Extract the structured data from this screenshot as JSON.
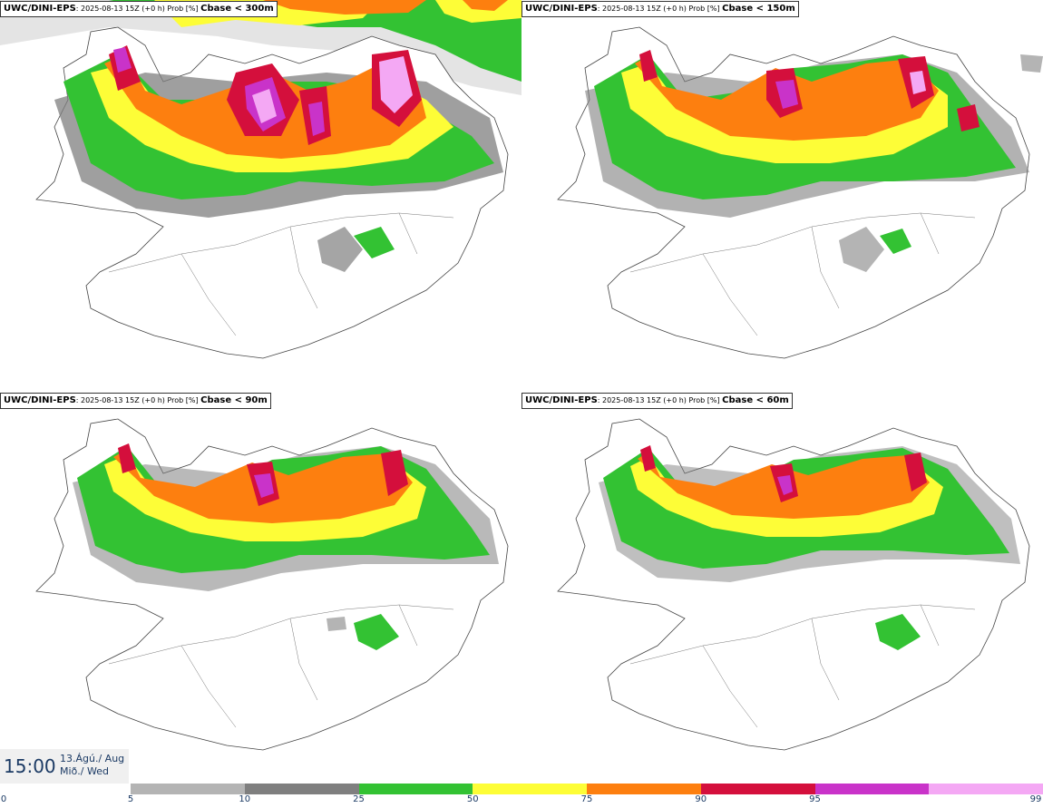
{
  "panels": [
    {
      "source": "UWC/DINI-EPS",
      "meta": ": 2025-08-13 15Z (+0 h) Prob [%] ",
      "label": "Cbase < 300m"
    },
    {
      "source": "UWC/DINI-EPS",
      "meta": ": 2025-08-13 15Z (+0 h) Prob [%] ",
      "label": "Cbase < 150m"
    },
    {
      "source": "UWC/DINI-EPS",
      "meta": ": 2025-08-13 15Z (+0 h) Prob [%] ",
      "label": "Cbase < 90m"
    },
    {
      "source": "UWC/DINI-EPS",
      "meta": ": 2025-08-13 15Z (+0 h) Prob [%] ",
      "label": "Cbase < 60m"
    }
  ],
  "time": {
    "clock": "15:00",
    "date_line1": "13.Ágú./ Aug",
    "date_line2": "Mið./ Wed"
  },
  "legend": {
    "colors": [
      "#b4b4b4",
      "#7f7f7f",
      "#33c233",
      "#fdfd37",
      "#fd7f0f",
      "#d40f3c",
      "#c933c9",
      "#f4a8f4"
    ],
    "ticks": [
      "0",
      "5",
      "10",
      "25",
      "50",
      "75",
      "90",
      "95",
      "99"
    ]
  }
}
